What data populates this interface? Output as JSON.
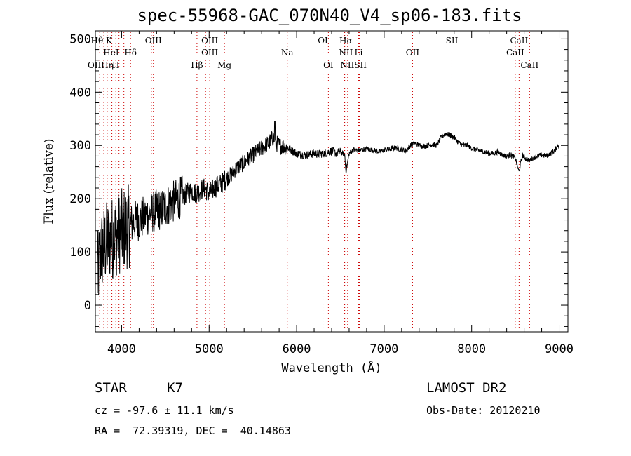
{
  "chart_data": {
    "type": "line",
    "title": "spec-55968-GAC_070N40_V4_sp06-183.fits",
    "xlabel": "Wavelength (Å)",
    "ylabel": "Flux (relative)",
    "xlim": [
      3700,
      9100
    ],
    "ylim": [
      -50,
      515
    ],
    "x_ticks": [
      4000,
      5000,
      6000,
      7000,
      8000,
      9000
    ],
    "y_ticks": [
      0,
      100,
      200,
      300,
      400,
      500
    ],
    "grid": false,
    "legend": "none",
    "line_color": "#000000",
    "marker_color": "#cc0000",
    "series": [
      {
        "x": [
          3720,
          3760,
          3800,
          3840,
          3880,
          3920,
          3960,
          4000,
          4050,
          4100,
          4150,
          4200,
          4250,
          4300,
          4350,
          4400,
          4450,
          4500,
          4550,
          4600,
          4650,
          4700,
          4750,
          4800,
          4850,
          4900,
          4950,
          5000,
          5050,
          5100,
          5150,
          5200,
          5250,
          5300,
          5350,
          5400,
          5450,
          5500,
          5550,
          5600,
          5650,
          5700,
          5730,
          5760,
          5800,
          5850,
          5900,
          5950,
          6000,
          6050,
          6100,
          6150,
          6200,
          6250,
          6300,
          6350,
          6400,
          6450,
          6500,
          6550,
          6563,
          6600,
          6650,
          6700,
          6750,
          6800,
          6850,
          6900,
          6950,
          7000,
          7050,
          7100,
          7150,
          7200,
          7250,
          7300,
          7350,
          7400,
          7450,
          7500,
          7550,
          7600,
          7650,
          7700,
          7750,
          7800,
          7850,
          7900,
          7950,
          8000,
          8050,
          8100,
          8150,
          8200,
          8250,
          8300,
          8350,
          8400,
          8450,
          8500,
          8540,
          8580,
          8620,
          8660,
          8700,
          8750,
          8800,
          8850,
          8900,
          8950,
          8980,
          9000
        ],
        "y": [
          50,
          100,
          110,
          120,
          125,
          130,
          135,
          140,
          145,
          150,
          158,
          160,
          165,
          170,
          175,
          178,
          180,
          185,
          190,
          195,
          200,
          205,
          210,
          215,
          210,
          215,
          220,
          210,
          218,
          225,
          230,
          238,
          245,
          255,
          262,
          268,
          275,
          282,
          288,
          295,
          300,
          308,
          315,
          305,
          300,
          298,
          295,
          290,
          285,
          283,
          282,
          283,
          285,
          284,
          285,
          286,
          290,
          285,
          288,
          282,
          250,
          285,
          292,
          290,
          292,
          293,
          292,
          290,
          288,
          292,
          292,
          295,
          295,
          292,
          290,
          300,
          305,
          300,
          298,
          300,
          302,
          300,
          315,
          322,
          320,
          315,
          305,
          300,
          300,
          295,
          292,
          290,
          288,
          285,
          285,
          288,
          282,
          280,
          282,
          276,
          250,
          282,
          275,
          272,
          276,
          280,
          282,
          280,
          285,
          290,
          300,
          300
        ]
      }
    ],
    "line_markers": {
      "row1": [
        "H$\\theta$ K",
        "OIII",
        "OIII",
        "OI",
        "H$\\alpha$",
        "SII",
        "CaII"
      ],
      "row1_labels": [
        "Hθ K",
        "OIII",
        "OIII",
        "OI",
        "Hα",
        "SII",
        "CaII"
      ],
      "row2_labels": [
        "HeI",
        "Hδ",
        "OIII",
        "Na",
        "NII",
        "Li",
        "OII",
        "CaII"
      ],
      "row3_labels": [
        "OIIHη",
        "H",
        "Hβ",
        "Mg",
        "OI",
        "NIISII",
        "CaII"
      ]
    }
  },
  "object_class": "STAR",
  "object_subclass": "K7",
  "survey": "LAMOST DR2",
  "cz_text": "cz = -97.6 ± 11.1 km/s",
  "obs_date_text": "Obs-Date: 20120210",
  "radec_text": "RA =  72.39319, DEC =  40.14863"
}
